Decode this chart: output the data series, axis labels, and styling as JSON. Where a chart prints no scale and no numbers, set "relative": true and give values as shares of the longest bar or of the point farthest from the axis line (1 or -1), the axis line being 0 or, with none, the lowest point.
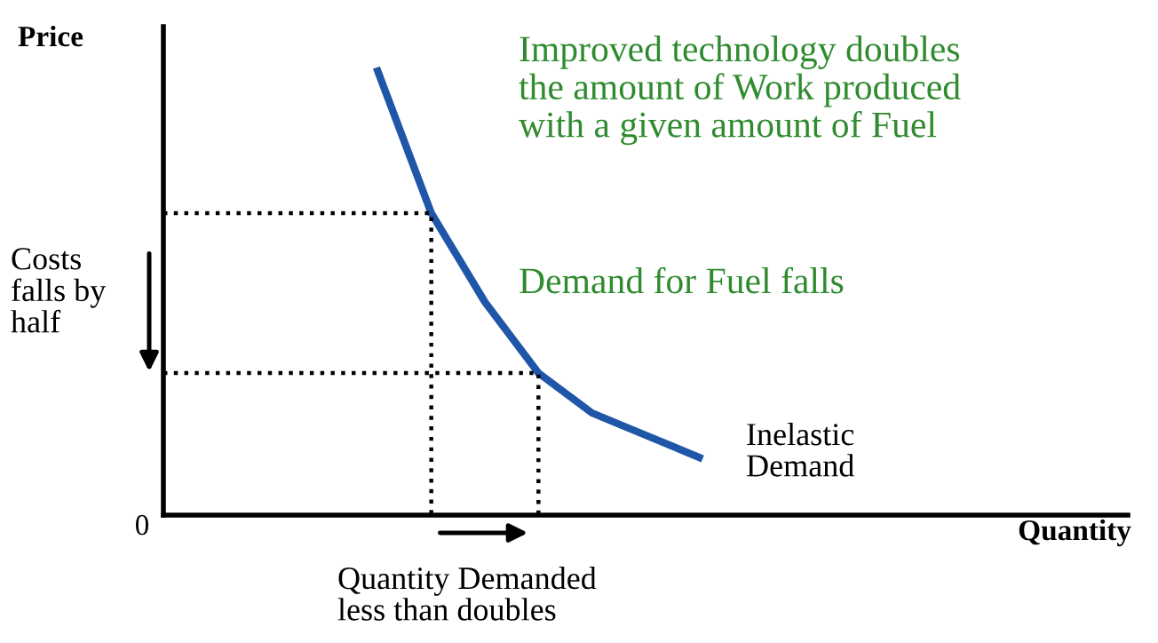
{
  "chart_data": {
    "type": "line",
    "xlabel": "Quantity",
    "ylabel": "Price",
    "relative": true,
    "categories": [
      null,
      null,
      null,
      null,
      null,
      null,
      null,
      null,
      null,
      null,
      null,
      null,
      null,
      null,
      null,
      null,
      null,
      null,
      null
    ],
    "series": [
      {
        "color": "#1f56a8",
        "line_style": "solid",
        "values": [
          null,
          null,
          null,
          null,
          1,
          0.68,
          0.48,
          0.32,
          0.23,
          0.18,
          0.13,
          null,
          null,
          null,
          null,
          null,
          null,
          null,
          null
        ]
      },
      {
        "type": "step",
        "color": "#000000",
        "line_style": "dotted",
        "values": [
          0.68,
          0.68,
          0.68,
          0.68,
          0.68,
          0,
          null,
          null,
          null,
          null,
          null,
          null,
          null,
          null,
          null,
          null,
          null,
          null,
          null
        ]
      },
      {
        "type": "step",
        "color": "#000000",
        "line_style": "dotted",
        "values": [
          0.32,
          0.32,
          0.32,
          0.32,
          0.32,
          0.32,
          0.32,
          0,
          null,
          null,
          null,
          null,
          null,
          null,
          null,
          null,
          null,
          null,
          null
        ]
      }
    ],
    "annotations": [
      "Improved technology doubles\nthe amount of Work produced\nwith a given amount of Fuel",
      "Demand for Fuel falls",
      "Costs\nfalls by\nhalf",
      "Inelastic\nDemand",
      "Quantity Demanded\nless than doubles",
      "0"
    ]
  }
}
